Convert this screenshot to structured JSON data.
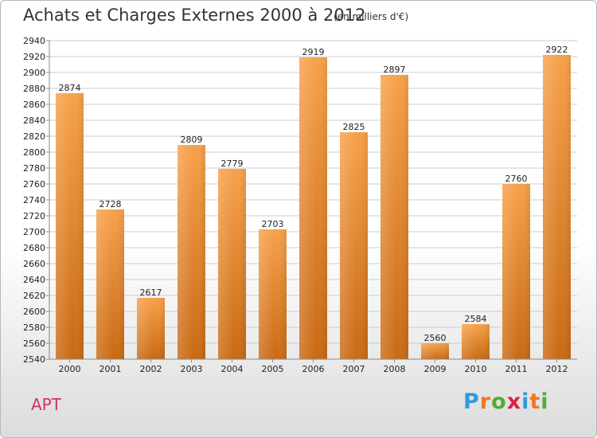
{
  "header": {
    "title": "Achats et Charges Externes 2000 à 2012",
    "subtitle": "(en milliers d'€)"
  },
  "footer": {
    "entity": "APT",
    "brand": [
      "P",
      "r",
      "o",
      "x",
      "i",
      "t",
      "i"
    ],
    "brand_colors": [
      "#3399dd",
      "#ee7722",
      "#55aa33",
      "#dd2244",
      "#3399dd",
      "#ee7722",
      "#55aa33"
    ]
  },
  "colors": {
    "bar_top": "#f7a14a",
    "bar_bottom": "#c96a14",
    "grid": "#cccccc",
    "axis": "#888888"
  },
  "chart_data": {
    "type": "bar",
    "title": "Achats et Charges Externes 2000 à 2012",
    "subtitle": "(en milliers d'€)",
    "categories": [
      "2000",
      "2001",
      "2002",
      "2003",
      "2004",
      "2005",
      "2006",
      "2007",
      "2008",
      "2009",
      "2010",
      "2011",
      "2012"
    ],
    "values": [
      2874,
      2728,
      2617,
      2809,
      2779,
      2703,
      2919,
      2825,
      2897,
      2560,
      2584,
      2760,
      2922
    ],
    "ylim": [
      2540,
      2940
    ],
    "ytick_step": 20,
    "grid": true,
    "data_labels": true
  }
}
